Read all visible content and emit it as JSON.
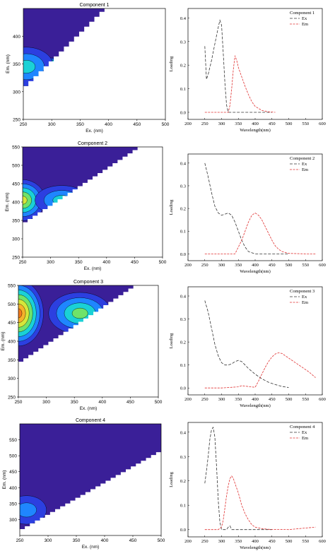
{
  "figure": {
    "colors": {
      "plot_bg": "#3a1f98",
      "contour_levels": [
        "#2c3fe0",
        "#1f86ff",
        "#1ad1d6",
        "#6fe36a",
        "#d5e63a",
        "#f5b22a",
        "#f27a1d"
      ],
      "contour_line": "#000000",
      "ex_line": "#333333",
      "em_line": "#e03030"
    }
  },
  "chart_data": [
    {
      "type": "heatmap",
      "title": "Component 1",
      "xlabel": "Ex. (nm)",
      "ylabel": "Em. (nm)",
      "xlim": [
        250,
        500
      ],
      "ylim": [
        250,
        450
      ],
      "xticks": [
        250,
        300,
        350,
        400,
        450,
        500
      ],
      "yticks": [
        250,
        300,
        350,
        400
      ],
      "peaks": [
        {
          "ex": 300,
          "em": 345,
          "level": 7,
          "spread_ex": 14,
          "spread_em": 10
        },
        {
          "ex": 255,
          "em": 345,
          "level": 3,
          "spread_ex": 30,
          "spread_em": 22
        }
      ]
    },
    {
      "type": "line",
      "legend_title": "Component 1",
      "xlabel": "Wavelength(nm)",
      "ylabel": "Loading",
      "xlim": [
        200,
        600
      ],
      "ylim": [
        -0.03,
        0.44
      ],
      "xticks": [
        200,
        250,
        300,
        350,
        400,
        450,
        500,
        550,
        600
      ],
      "yticks": [
        0.0,
        0.1,
        0.2,
        0.3,
        0.4
      ],
      "ytick_labels": [
        "0.0",
        "0.1",
        "0.2",
        "0.3",
        "0.4"
      ],
      "series": [
        {
          "name": "Ex",
          "x": [
            250,
            255,
            260,
            270,
            280,
            290,
            295,
            300,
            305,
            310,
            315,
            320,
            325,
            330,
            335,
            340,
            350,
            400,
            450
          ],
          "y": [
            0.28,
            0.14,
            0.16,
            0.22,
            0.29,
            0.36,
            0.39,
            0.37,
            0.25,
            0.12,
            0.03,
            0.0,
            0.0,
            0.0,
            0.0,
            0.0,
            0.0,
            0.0,
            0.0
          ]
        },
        {
          "name": "Em",
          "x": [
            250,
            300,
            320,
            325,
            330,
            335,
            340,
            345,
            350,
            360,
            370,
            380,
            390,
            400,
            420,
            440,
            460
          ],
          "y": [
            0.0,
            0.0,
            0.0,
            0.03,
            0.1,
            0.18,
            0.24,
            0.22,
            0.19,
            0.15,
            0.11,
            0.075,
            0.045,
            0.025,
            0.008,
            0.002,
            0.0
          ]
        }
      ]
    },
    {
      "type": "heatmap",
      "title": "Component 2",
      "xlabel": "Ex. (nm)",
      "ylabel": "Em. (nm)",
      "xlim": [
        250,
        500
      ],
      "ylim": [
        250,
        550
      ],
      "xticks": [
        250,
        300,
        350,
        400,
        450,
        500
      ],
      "yticks": [
        250,
        300,
        350,
        400,
        450,
        500,
        550
      ],
      "peaks": [
        {
          "ex": 250,
          "em": 405,
          "level": 5,
          "spread_ex": 25,
          "spread_em": 35
        },
        {
          "ex": 320,
          "em": 405,
          "level": 3,
          "spread_ex": 30,
          "spread_em": 25
        }
      ]
    },
    {
      "type": "line",
      "legend_title": "Component 2",
      "xlabel": "Wavelength(nm)",
      "ylabel": "Loading",
      "xlim": [
        200,
        600
      ],
      "ylim": [
        -0.03,
        0.44
      ],
      "xticks": [
        200,
        250,
        300,
        350,
        400,
        450,
        500,
        550,
        600
      ],
      "yticks": [
        0.0,
        0.1,
        0.2,
        0.3,
        0.4
      ],
      "ytick_labels": [
        "0.0",
        "0.1",
        "0.2",
        "0.3",
        "0.4"
      ],
      "series": [
        {
          "name": "Ex",
          "x": [
            250,
            260,
            270,
            280,
            290,
            300,
            310,
            320,
            330,
            340,
            350,
            360,
            370,
            380,
            400,
            450,
            500
          ],
          "y": [
            0.4,
            0.34,
            0.27,
            0.21,
            0.18,
            0.17,
            0.175,
            0.18,
            0.17,
            0.14,
            0.1,
            0.06,
            0.03,
            0.01,
            0.0,
            0.0,
            0.0
          ]
        },
        {
          "name": "Em",
          "x": [
            250,
            300,
            340,
            350,
            360,
            370,
            380,
            390,
            400,
            410,
            420,
            430,
            440,
            450,
            460,
            470,
            480,
            500,
            550,
            580
          ],
          "y": [
            0.0,
            0.0,
            0.0,
            0.03,
            0.06,
            0.1,
            0.14,
            0.17,
            0.18,
            0.17,
            0.15,
            0.12,
            0.09,
            0.06,
            0.035,
            0.02,
            0.01,
            0.002,
            0.0,
            0.0
          ]
        }
      ]
    },
    {
      "type": "heatmap",
      "title": "Component 3",
      "xlabel": "Ex. (nm)",
      "ylabel": "Em. (nm)",
      "xlim": [
        250,
        500
      ],
      "ylim": [
        250,
        550
      ],
      "xticks": [
        250,
        300,
        350,
        400,
        450,
        500
      ],
      "yticks": [
        250,
        300,
        350,
        400,
        450,
        500,
        550
      ],
      "peaks": [
        {
          "ex": 250,
          "em": 475,
          "level": 7,
          "spread_ex": 28,
          "spread_em": 55
        },
        {
          "ex": 360,
          "em": 475,
          "level": 4,
          "spread_ex": 35,
          "spread_em": 35
        }
      ]
    },
    {
      "type": "line",
      "legend_title": "Component 3",
      "xlabel": "Wavelength(nm)",
      "ylabel": "Loading",
      "xlim": [
        200,
        600
      ],
      "ylim": [
        -0.03,
        0.44
      ],
      "xticks": [
        200,
        250,
        300,
        350,
        400,
        450,
        500,
        550,
        600
      ],
      "yticks": [
        0.0,
        0.1,
        0.2,
        0.3,
        0.4
      ],
      "ytick_labels": [
        "0.0",
        "0.1",
        "0.2",
        "0.3",
        "0.4"
      ],
      "series": [
        {
          "name": "Ex",
          "x": [
            250,
            260,
            270,
            280,
            290,
            300,
            310,
            320,
            330,
            340,
            350,
            360,
            370,
            380,
            400,
            420,
            440,
            460,
            480,
            500
          ],
          "y": [
            0.38,
            0.33,
            0.26,
            0.19,
            0.14,
            0.11,
            0.1,
            0.1,
            0.105,
            0.115,
            0.12,
            0.115,
            0.1,
            0.085,
            0.06,
            0.04,
            0.025,
            0.015,
            0.007,
            0.002
          ]
        },
        {
          "name": "Em",
          "x": [
            250,
            300,
            350,
            360,
            400,
            410,
            420,
            430,
            440,
            450,
            460,
            470,
            480,
            490,
            500,
            520,
            540,
            560,
            580
          ],
          "y": [
            0.0,
            0.0,
            0.005,
            0.01,
            0.003,
            0.03,
            0.06,
            0.09,
            0.115,
            0.135,
            0.148,
            0.153,
            0.15,
            0.14,
            0.13,
            0.11,
            0.09,
            0.07,
            0.045
          ]
        }
      ]
    },
    {
      "type": "heatmap",
      "title": "Component 4",
      "xlabel": "Ex. (nm)",
      "ylabel": "Em. (nm)",
      "xlim": [
        250,
        500
      ],
      "ylim": [
        250,
        600
      ],
      "xticks": [
        250,
        300,
        350,
        400,
        450,
        500
      ],
      "yticks": [
        300,
        350,
        400,
        450,
        500,
        550
      ],
      "peaks": [
        {
          "ex": 275,
          "em": 330,
          "level": 6,
          "spread_ex": 10,
          "spread_em": 14
        },
        {
          "ex": 262,
          "em": 330,
          "level": 2,
          "spread_ex": 22,
          "spread_em": 28
        }
      ]
    },
    {
      "type": "line",
      "legend_title": "Component 4",
      "xlabel": "Wavelength(nm)",
      "ylabel": "Loading",
      "xlim": [
        200,
        600
      ],
      "ylim": [
        -0.03,
        0.44
      ],
      "xticks": [
        200,
        250,
        300,
        350,
        400,
        450,
        500,
        550,
        600
      ],
      "yticks": [
        0.0,
        0.1,
        0.2,
        0.3,
        0.4
      ],
      "ytick_labels": [
        "0.0",
        "0.1",
        "0.2",
        "0.3",
        "0.4"
      ],
      "series": [
        {
          "name": "Ex",
          "x": [
            250,
            255,
            260,
            265,
            270,
            275,
            280,
            285,
            290,
            295,
            300,
            305,
            310,
            315,
            320,
            325,
            330,
            340,
            350,
            400,
            450
          ],
          "y": [
            0.19,
            0.24,
            0.3,
            0.37,
            0.41,
            0.42,
            0.38,
            0.26,
            0.12,
            0.03,
            0.0,
            0.0,
            0.0,
            0.0,
            0.01,
            0.015,
            0.0,
            0.0,
            0.0,
            0.0,
            0.0
          ]
        },
        {
          "name": "Em",
          "x": [
            250,
            290,
            300,
            305,
            310,
            315,
            320,
            325,
            330,
            335,
            340,
            350,
            360,
            370,
            380,
            390,
            400,
            420,
            440,
            500,
            580
          ],
          "y": [
            0.0,
            0.0,
            0.01,
            0.04,
            0.09,
            0.14,
            0.18,
            0.21,
            0.22,
            0.21,
            0.19,
            0.15,
            0.1,
            0.065,
            0.04,
            0.02,
            0.01,
            0.004,
            0.001,
            0.0,
            0.01
          ]
        }
      ]
    }
  ]
}
